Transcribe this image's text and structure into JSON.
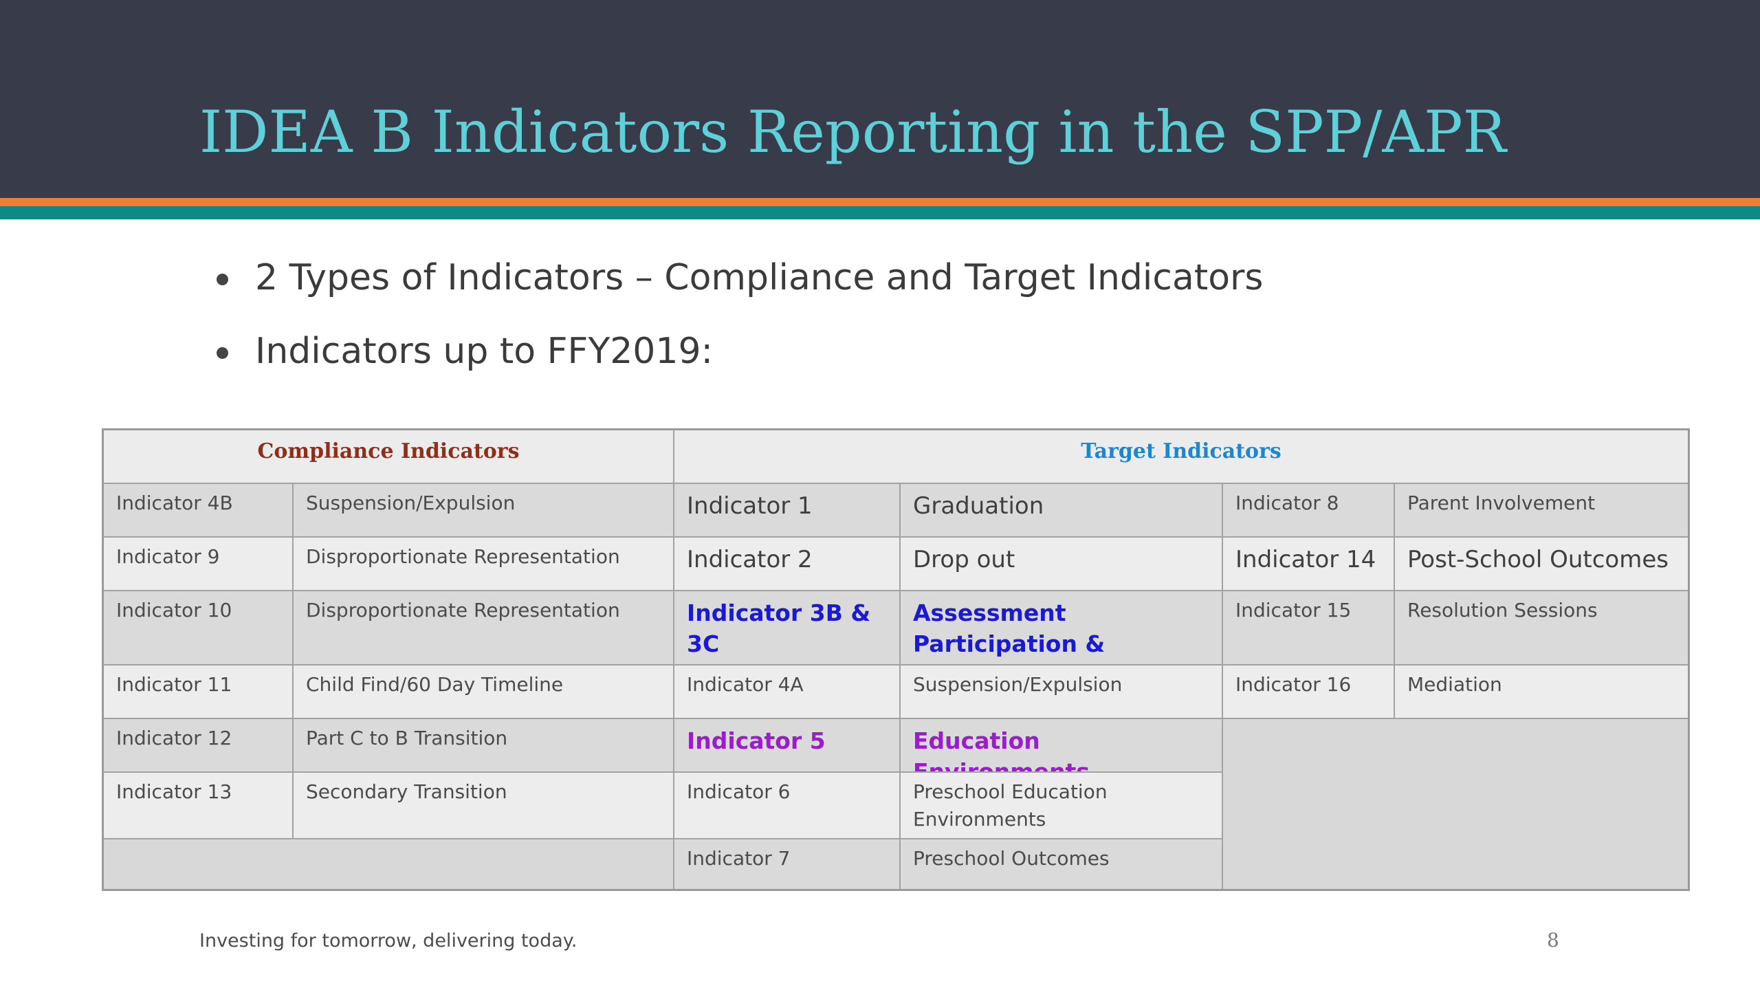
{
  "slide": {
    "title": "IDEA B Indicators Reporting in the SPP/APR",
    "bullets": [
      "2 Types of Indicators – Compliance and Target Indicators",
      "Indicators up to FFY2019:"
    ],
    "footer": "Investing for tomorrow, delivering today.",
    "page_number": "8"
  },
  "table": {
    "compliance_header": "Compliance Indicators",
    "target_header": "Target Indicators",
    "compliance_rows": [
      {
        "indicator": "Indicator 4B",
        "name": "Suspension/Expulsion"
      },
      {
        "indicator": "Indicator 9",
        "name": "Disproportionate Representation"
      },
      {
        "indicator": "Indicator 10",
        "name": "Disproportionate Representation"
      },
      {
        "indicator": "Indicator 11",
        "name": "Child Find/60 Day Timeline"
      },
      {
        "indicator": "Indicator 12",
        "name": "Part C to B Transition"
      },
      {
        "indicator": "Indicator 13",
        "name": "Secondary Transition"
      }
    ],
    "target_rows": [
      {
        "indicator": "Indicator 1",
        "name": "Graduation"
      },
      {
        "indicator": "Indicator 2",
        "name": "Drop out"
      },
      {
        "indicator": "Indicator 3B & 3C",
        "name": "Assessment Participation & Outcomes"
      },
      {
        "indicator": "Indicator 4A",
        "name": "Suspension/Expulsion"
      },
      {
        "indicator": "Indicator 5",
        "name": "Education Environments"
      },
      {
        "indicator": "Indicator 6",
        "name": "Preschool Education Environments"
      },
      {
        "indicator": "Indicator 7",
        "name": "Preschool Outcomes"
      }
    ],
    "target_rows_right": [
      {
        "indicator": "Indicator 8",
        "name": "Parent Involvement"
      },
      {
        "indicator": "Indicator 14",
        "name": "Post-School Outcomes"
      },
      {
        "indicator": "Indicator 15",
        "name": "Resolution Sessions"
      },
      {
        "indicator": "Indicator 16",
        "name": "Mediation"
      }
    ]
  },
  "colors": {
    "header_background": "#383b49",
    "title_text": "#5fd0d8",
    "stripe_orange": "#f07f35",
    "stripe_teal": "#0b8a86",
    "compliance_header_text": "#8e2f1a",
    "target_header_text": "#1d86cf",
    "highlight_blue": "#1a1ad6",
    "highlight_purple": "#9a1bd0"
  }
}
